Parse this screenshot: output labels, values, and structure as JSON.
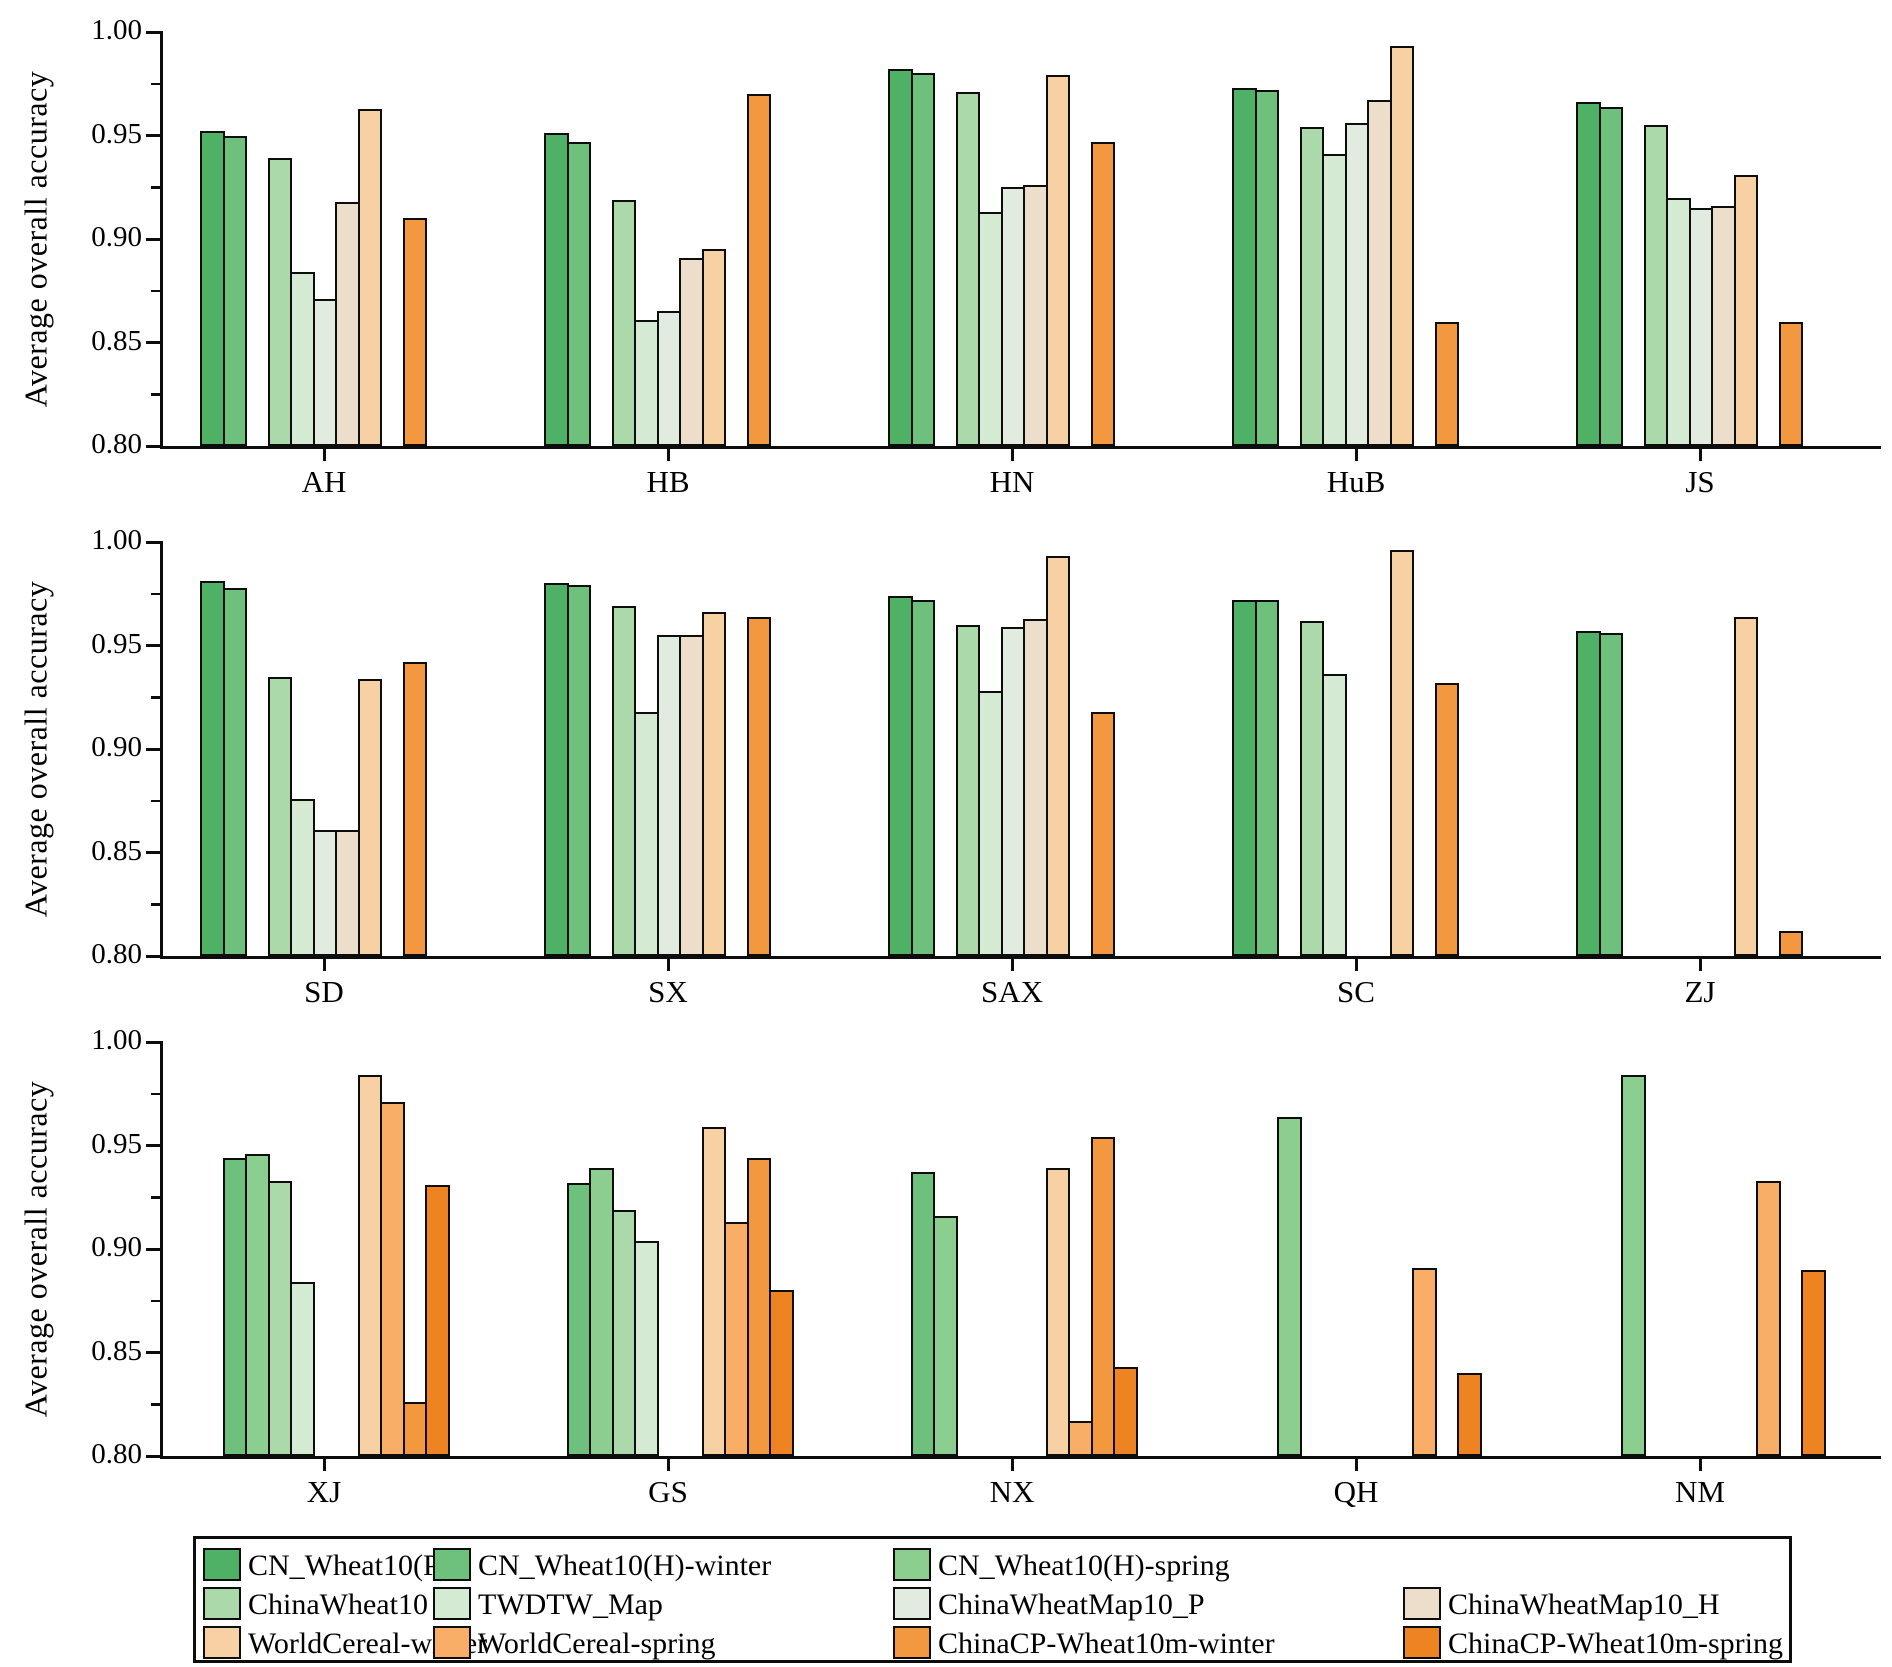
{
  "figure": {
    "ylabel": "Average overall accuracy",
    "ytick_labels": [
      "1.00",
      "0.95",
      "0.90",
      "0.85",
      "0.80"
    ]
  },
  "chart_data": [
    {
      "type": "bar",
      "title": "",
      "xlabel": "",
      "ylabel": "Average overall accuracy",
      "ylim": [
        0.8,
        1.0
      ],
      "yticks": [
        0.8,
        0.85,
        0.9,
        0.95,
        1.0
      ],
      "minor_yticks": [
        0.825,
        0.875,
        0.925,
        0.975
      ],
      "grid": false,
      "categories": [
        "AH",
        "HB",
        "HN",
        "HuB",
        "JS"
      ],
      "series": [
        {
          "name": "CN_Wheat10(P)",
          "slot": 1,
          "values": [
            0.952,
            0.951,
            0.982,
            0.973,
            0.966
          ]
        },
        {
          "name": "CN_Wheat10(H)-winter",
          "slot": 2,
          "values": [
            0.95,
            0.947,
            0.98,
            0.972,
            0.964
          ]
        },
        {
          "name": "ChinaWheat10",
          "slot": 4,
          "values": [
            0.939,
            0.919,
            0.971,
            0.954,
            0.955
          ]
        },
        {
          "name": "TWDTW_Map",
          "slot": 5,
          "values": [
            0.884,
            0.861,
            0.913,
            0.941,
            0.92
          ]
        },
        {
          "name": "ChinaWheatMap10_P",
          "slot": 6,
          "values": [
            0.871,
            0.865,
            0.925,
            0.956,
            0.915
          ]
        },
        {
          "name": "ChinaWheatMap10_H",
          "slot": 7,
          "values": [
            0.918,
            0.891,
            0.926,
            0.967,
            0.916
          ]
        },
        {
          "name": "WorldCereal-winter",
          "slot": 8,
          "values": [
            0.963,
            0.895,
            0.979,
            0.993,
            0.931
          ]
        },
        {
          "name": "ChinaCP-Wheat10m-winter",
          "slot": 10,
          "values": [
            0.91,
            0.97,
            0.947,
            0.86,
            0.86
          ]
        }
      ]
    },
    {
      "type": "bar",
      "title": "",
      "xlabel": "",
      "ylabel": "Average overall accuracy",
      "ylim": [
        0.8,
        1.0
      ],
      "yticks": [
        0.8,
        0.85,
        0.9,
        0.95,
        1.0
      ],
      "minor_yticks": [
        0.825,
        0.875,
        0.925,
        0.975
      ],
      "grid": false,
      "categories": [
        "SD",
        "SX",
        "SAX",
        "SC",
        "ZJ"
      ],
      "series": [
        {
          "name": "CN_Wheat10(P)",
          "slot": 1,
          "values": [
            0.981,
            0.98,
            0.974,
            0.972,
            0.957
          ]
        },
        {
          "name": "CN_Wheat10(H)-winter",
          "slot": 2,
          "values": [
            0.978,
            0.979,
            0.972,
            0.972,
            0.956
          ]
        },
        {
          "name": "ChinaWheat10",
          "slot": 4,
          "values": [
            0.935,
            0.969,
            0.96,
            0.962,
            null
          ]
        },
        {
          "name": "TWDTW_Map",
          "slot": 5,
          "values": [
            0.876,
            0.918,
            0.928,
            0.936,
            null
          ]
        },
        {
          "name": "ChinaWheatMap10_P",
          "slot": 6,
          "values": [
            0.861,
            0.955,
            0.959,
            null,
            null
          ]
        },
        {
          "name": "ChinaWheatMap10_H",
          "slot": 7,
          "values": [
            0.861,
            0.955,
            0.963,
            null,
            null
          ]
        },
        {
          "name": "WorldCereal-winter",
          "slot": 8,
          "values": [
            0.934,
            0.966,
            0.993,
            0.996,
            0.964
          ]
        },
        {
          "name": "ChinaCP-Wheat10m-winter",
          "slot": 10,
          "values": [
            0.942,
            0.964,
            0.918,
            0.932,
            0.812
          ]
        }
      ]
    },
    {
      "type": "bar",
      "title": "",
      "xlabel": "",
      "ylabel": "Average overall accuracy",
      "ylim": [
        0.8,
        1.0
      ],
      "yticks": [
        0.8,
        0.85,
        0.9,
        0.95,
        1.0
      ],
      "minor_yticks": [
        0.825,
        0.875,
        0.925,
        0.975
      ],
      "grid": false,
      "categories": [
        "XJ",
        "GS",
        "NX",
        "QH",
        "NM"
      ],
      "series": [
        {
          "name": "CN_Wheat10(H)-winter",
          "slot": 2,
          "values": [
            0.944,
            0.932,
            0.937,
            null,
            null
          ]
        },
        {
          "name": "CN_Wheat10(H)-spring",
          "slot": 3,
          "values": [
            0.946,
            0.939,
            0.916,
            0.964,
            0.984
          ]
        },
        {
          "name": "ChinaWheat10",
          "slot": 4,
          "values": [
            0.933,
            0.919,
            null,
            null,
            null
          ]
        },
        {
          "name": "TWDTW_Map",
          "slot": 5,
          "values": [
            0.884,
            0.904,
            null,
            null,
            null
          ]
        },
        {
          "name": "WorldCereal-winter",
          "slot": 8,
          "values": [
            0.984,
            0.959,
            0.939,
            null,
            null
          ]
        },
        {
          "name": "WorldCereal-spring",
          "slot": 9,
          "values": [
            0.971,
            0.913,
            0.817,
            0.891,
            0.933
          ]
        },
        {
          "name": "ChinaCP-Wheat10m-winter",
          "slot": 10,
          "values": [
            0.826,
            0.944,
            0.954,
            null,
            null
          ]
        },
        {
          "name": "ChinaCP-Wheat10m-spring",
          "slot": 11,
          "values": [
            0.931,
            0.88,
            0.843,
            0.84,
            0.89
          ]
        }
      ]
    }
  ],
  "legend": {
    "position": "bottom",
    "rows": [
      [
        0,
        1,
        2
      ],
      [
        3,
        4,
        5,
        6
      ],
      [
        7,
        8,
        9,
        10
      ]
    ],
    "items": [
      {
        "label": "CN_Wheat10(P)",
        "color": "#4fb166"
      },
      {
        "label": "CN_Wheat10(H)-winter",
        "color": "#6ec17c"
      },
      {
        "label": "CN_Wheat10(H)-spring",
        "color": "#8ccd90"
      },
      {
        "label": "ChinaWheat10",
        "color": "#abd9a9"
      },
      {
        "label": "TWDTW_Map",
        "color": "#d5ead3"
      },
      {
        "label": "ChinaWheatMap10_P",
        "color": "#e2ebdf"
      },
      {
        "label": "ChinaWheatMap10_H",
        "color": "#ecdecb"
      },
      {
        "label": "WorldCereal-winter",
        "color": "#f7d0a4"
      },
      {
        "label": "WorldCereal-spring",
        "color": "#f8ae66"
      },
      {
        "label": "ChinaCP-Wheat10m-winter",
        "color": "#f2993f"
      },
      {
        "label": "ChinaCP-Wheat10m-spring",
        "color": "#ee8322"
      }
    ]
  }
}
